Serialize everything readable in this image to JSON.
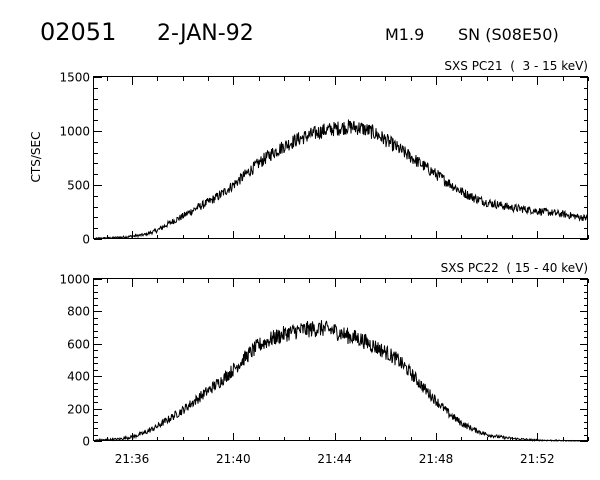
{
  "header": {
    "event_id": "02051",
    "date": "2-JAN-92",
    "goes_class": "M1.9",
    "location": "SN (S08E50)"
  },
  "chart_data": [
    {
      "type": "line",
      "title": "SXS PC21  (  3 - 15 keV)",
      "xlabel": "",
      "ylabel": "CTS/SEC",
      "xlim": [
        "21:34:30",
        "21:54:00"
      ],
      "ylim": [
        0,
        1500
      ],
      "y_ticks": [
        0,
        500,
        1000,
        1500
      ],
      "x_ticks": [
        "21:36",
        "21:40",
        "21:44",
        "21:48",
        "21:52"
      ],
      "x_tick_labels_visible": false,
      "grid": false,
      "series": [
        {
          "x": [
            "21:34:30",
            "21:35:00",
            "21:35:30",
            "21:36:00",
            "21:36:30",
            "21:37:00",
            "21:37:30",
            "21:38:00",
            "21:38:30",
            "21:39:00",
            "21:39:30",
            "21:40:00",
            "21:40:30",
            "21:41:00",
            "21:41:30",
            "21:42:00",
            "21:42:30",
            "21:43:00",
            "21:43:30",
            "21:44:00",
            "21:44:30",
            "21:45:00",
            "21:45:30",
            "21:46:00",
            "21:46:30",
            "21:47:00",
            "21:47:30",
            "21:48:00",
            "21:48:30",
            "21:49:00",
            "21:49:30",
            "21:50:00",
            "21:51:00",
            "21:52:00",
            "21:53:00",
            "21:54:00"
          ],
          "y": [
            5,
            10,
            15,
            25,
            40,
            80,
            150,
            210,
            280,
            340,
            410,
            500,
            600,
            700,
            790,
            860,
            920,
            960,
            1000,
            1020,
            1040,
            1030,
            990,
            920,
            840,
            760,
            680,
            600,
            520,
            440,
            380,
            340,
            290,
            260,
            230,
            190
          ]
        }
      ]
    },
    {
      "type": "line",
      "title": "SXS PC22  ( 15 - 40 keV)",
      "xlabel": "",
      "ylabel": "",
      "xlim": [
        "21:34:30",
        "21:54:00"
      ],
      "ylim": [
        0,
        1000
      ],
      "y_ticks": [
        0,
        200,
        400,
        600,
        800,
        1000
      ],
      "x_ticks": [
        "21:36",
        "21:40",
        "21:44",
        "21:48",
        "21:52"
      ],
      "x_tick_labels_visible": true,
      "grid": false,
      "series": [
        {
          "x": [
            "21:34:30",
            "21:35:00",
            "21:35:30",
            "21:36:00",
            "21:36:30",
            "21:37:00",
            "21:37:30",
            "21:38:00",
            "21:38:30",
            "21:39:00",
            "21:39:30",
            "21:40:00",
            "21:40:30",
            "21:41:00",
            "21:41:30",
            "21:42:00",
            "21:42:30",
            "21:43:00",
            "21:43:30",
            "21:44:00",
            "21:44:30",
            "21:45:00",
            "21:45:30",
            "21:46:00",
            "21:46:30",
            "21:47:00",
            "21:47:30",
            "21:48:00",
            "21:48:30",
            "21:49:00",
            "21:49:30",
            "21:50:00",
            "21:50:30",
            "21:51:00",
            "21:51:30",
            "21:52:00",
            "21:53:00",
            "21:54:00"
          ],
          "y": [
            5,
            8,
            12,
            25,
            50,
            90,
            140,
            190,
            250,
            310,
            370,
            440,
            520,
            590,
            630,
            660,
            680,
            690,
            695,
            680,
            650,
            630,
            590,
            550,
            500,
            420,
            330,
            250,
            170,
            110,
            70,
            40,
            25,
            15,
            10,
            5,
            2,
            0
          ]
        }
      ]
    }
  ]
}
